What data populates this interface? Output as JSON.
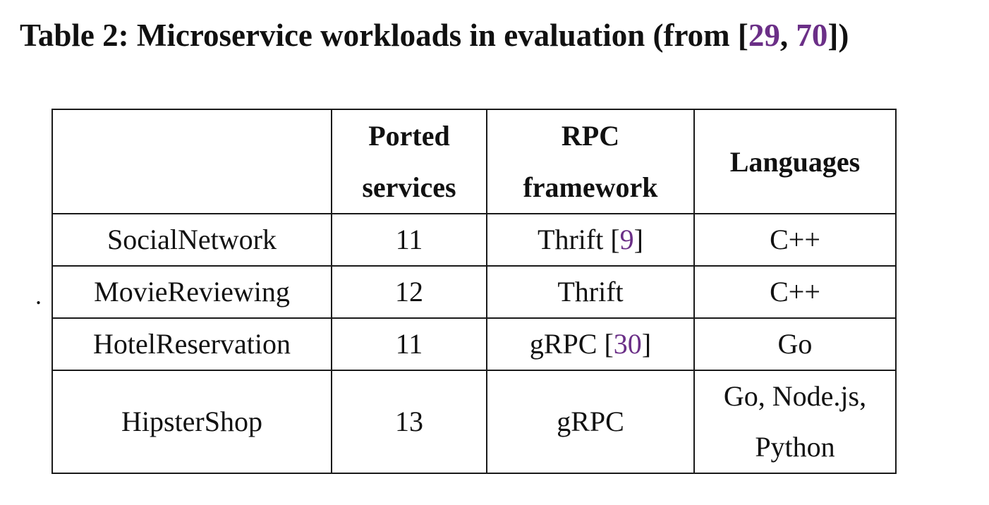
{
  "caption": {
    "prefix": "Table 2: Microservice workloads in evaluation (from [",
    "cite1": "29",
    "sep": ", ",
    "cite2": "70",
    "suffix": "])"
  },
  "stray_mark": ".",
  "table": {
    "headers": {
      "col0": "",
      "col1_line1": "Ported",
      "col1_line2": "services",
      "col2_line1": "RPC",
      "col2_line2": "framework",
      "col3": "Languages"
    },
    "rows": [
      {
        "name": "SocialNetwork",
        "services": "11",
        "rpc": "Thrift",
        "rpc_cite": "9",
        "languages": "C++"
      },
      {
        "name": "MovieReviewing",
        "services": "12",
        "rpc": "Thrift",
        "rpc_cite": "",
        "languages": "C++"
      },
      {
        "name": "HotelReservation",
        "services": "11",
        "rpc": "gRPC",
        "rpc_cite": "30",
        "languages": "Go"
      },
      {
        "name": "HipsterShop",
        "services": "13",
        "rpc": "gRPC",
        "rpc_cite": "",
        "languages_line1": "Go, Node.js,",
        "languages_line2": "Python"
      }
    ]
  },
  "colors": {
    "citation": "#6b2f87",
    "text": "#111111",
    "border": "#1a1a1a"
  }
}
